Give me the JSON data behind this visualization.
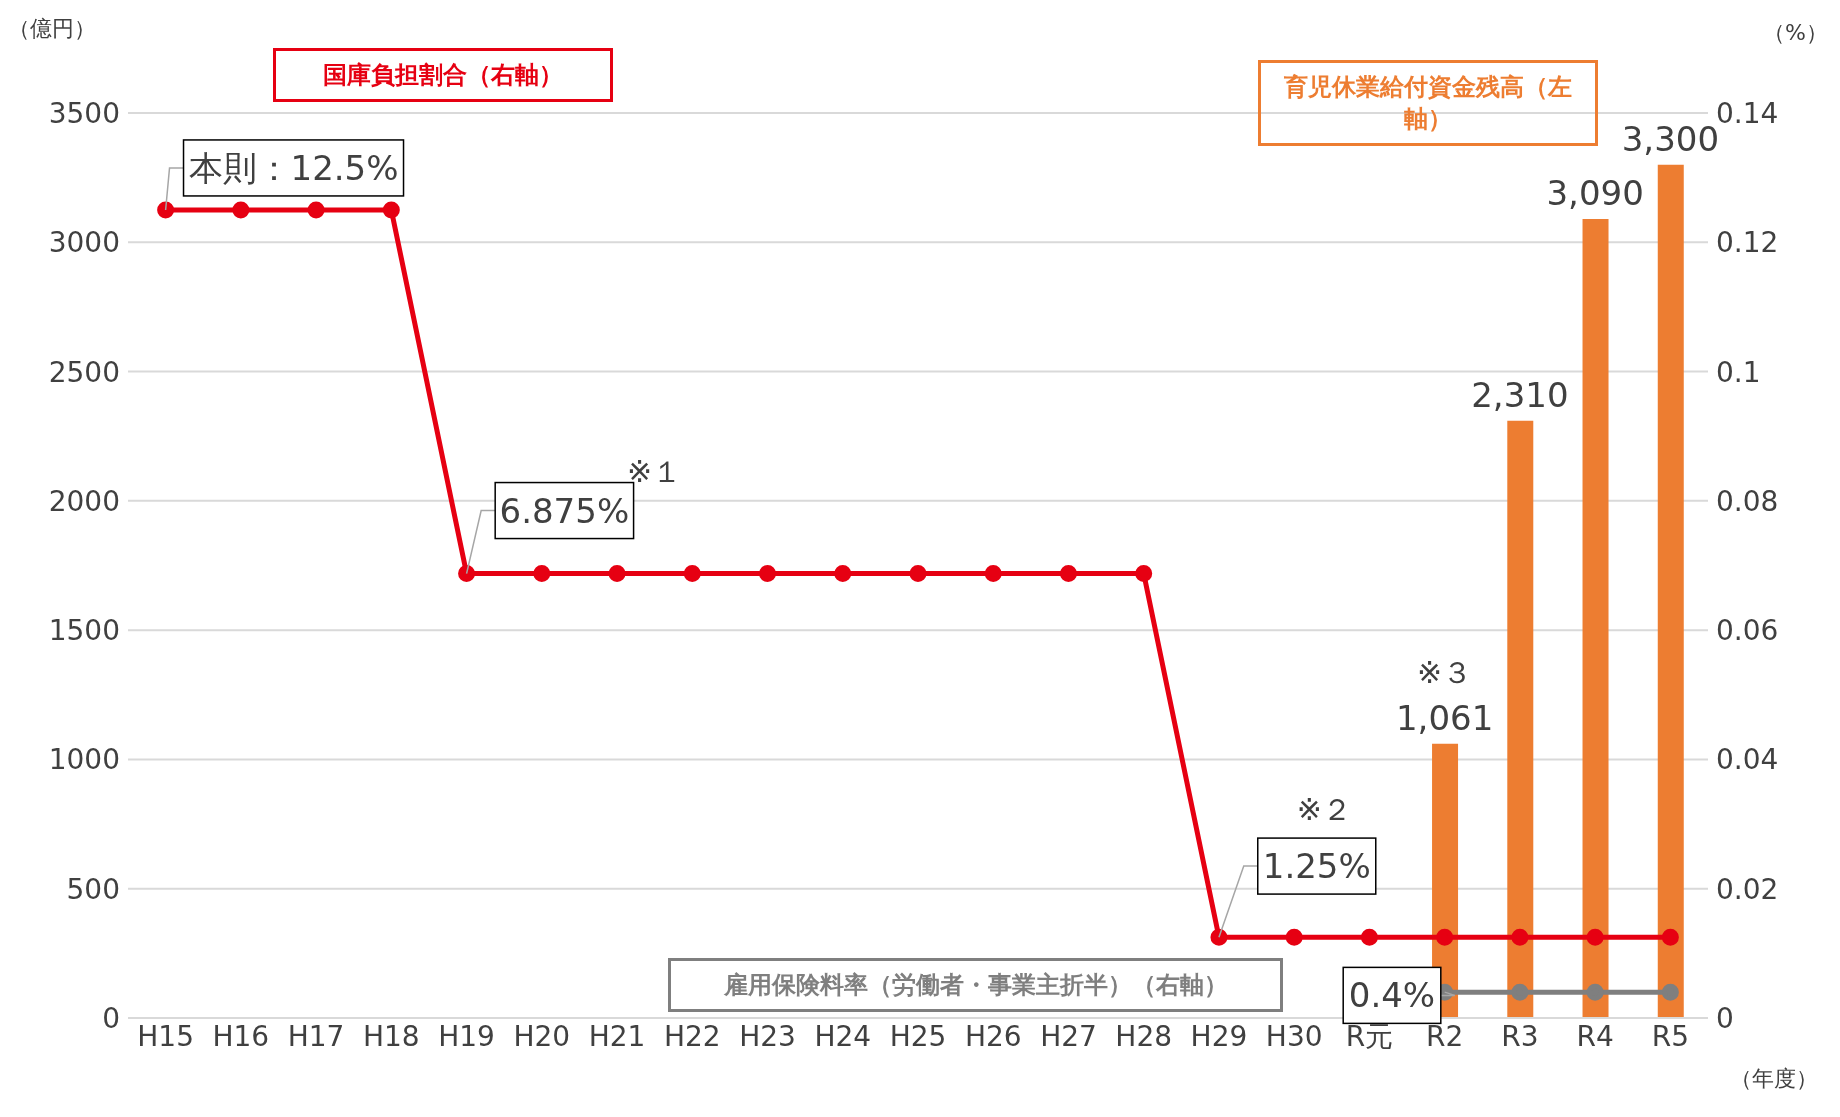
{
  "chart_data": {
    "type": "bar",
    "ylabel": "（億円）",
    "y2label": "（%）",
    "xlabel": "（年度）",
    "categories": [
      "H15",
      "H16",
      "H17",
      "H18",
      "H19",
      "H20",
      "H21",
      "H22",
      "H23",
      "H24",
      "H25",
      "H26",
      "H27",
      "H28",
      "H29",
      "H30",
      "R元",
      "R2",
      "R3",
      "R4",
      "R5"
    ],
    "series": [
      {
        "name": "育児休業給付資金残高（左軸）",
        "color": "#ed7d31",
        "values": [
          null,
          null,
          null,
          null,
          null,
          null,
          null,
          null,
          null,
          null,
          null,
          null,
          null,
          null,
          null,
          null,
          null,
          1061,
          2310,
          3090,
          3300
        ],
        "value_labels": [
          null,
          null,
          null,
          null,
          null,
          null,
          null,
          null,
          null,
          null,
          null,
          null,
          null,
          null,
          null,
          null,
          null,
          "1,061",
          "2,310",
          "3,090",
          "3,300"
        ]
      },
      {
        "name": "国庫負担割合（右軸）",
        "type": "line",
        "axis": "y2",
        "color": "#e60012",
        "values": [
          0.125,
          0.125,
          0.125,
          0.125,
          0.06875,
          0.06875,
          0.06875,
          0.06875,
          0.06875,
          0.06875,
          0.06875,
          0.06875,
          0.06875,
          0.06875,
          0.0125,
          0.0125,
          0.0125,
          0.0125,
          0.0125,
          0.0125,
          0.0125
        ]
      },
      {
        "name": "雇用保険料率（労働者・事業主折半）（右軸）",
        "type": "line",
        "axis": "y2",
        "color": "#7f7f7f",
        "values": [
          null,
          null,
          null,
          null,
          null,
          null,
          null,
          null,
          null,
          null,
          null,
          null,
          null,
          null,
          null,
          null,
          null,
          0.004,
          0.004,
          0.004,
          0.004
        ]
      }
    ],
    "ylim": [
      0,
      3500
    ],
    "yticks": [
      0,
      500,
      1000,
      1500,
      2000,
      2500,
      3000,
      3500
    ],
    "y2lim": [
      0,
      0.14
    ],
    "y2ticks": [
      0,
      0.02,
      0.04,
      0.06,
      0.08,
      0.1,
      0.12,
      0.14
    ],
    "grid": "y",
    "marker": "circle",
    "annotations": [
      {
        "text": "本則：12.5%",
        "x": "H15",
        "y": 3125
      },
      {
        "text": "6.875%",
        "x": "H19",
        "y": 1718.75
      },
      "※１",
      {
        "text": "1.25%",
        "x": "H29",
        "y": 312.5
      },
      "※２",
      {
        "text": "0.4%",
        "x": "R2",
        "y": 100
      },
      "※３"
    ]
  }
}
